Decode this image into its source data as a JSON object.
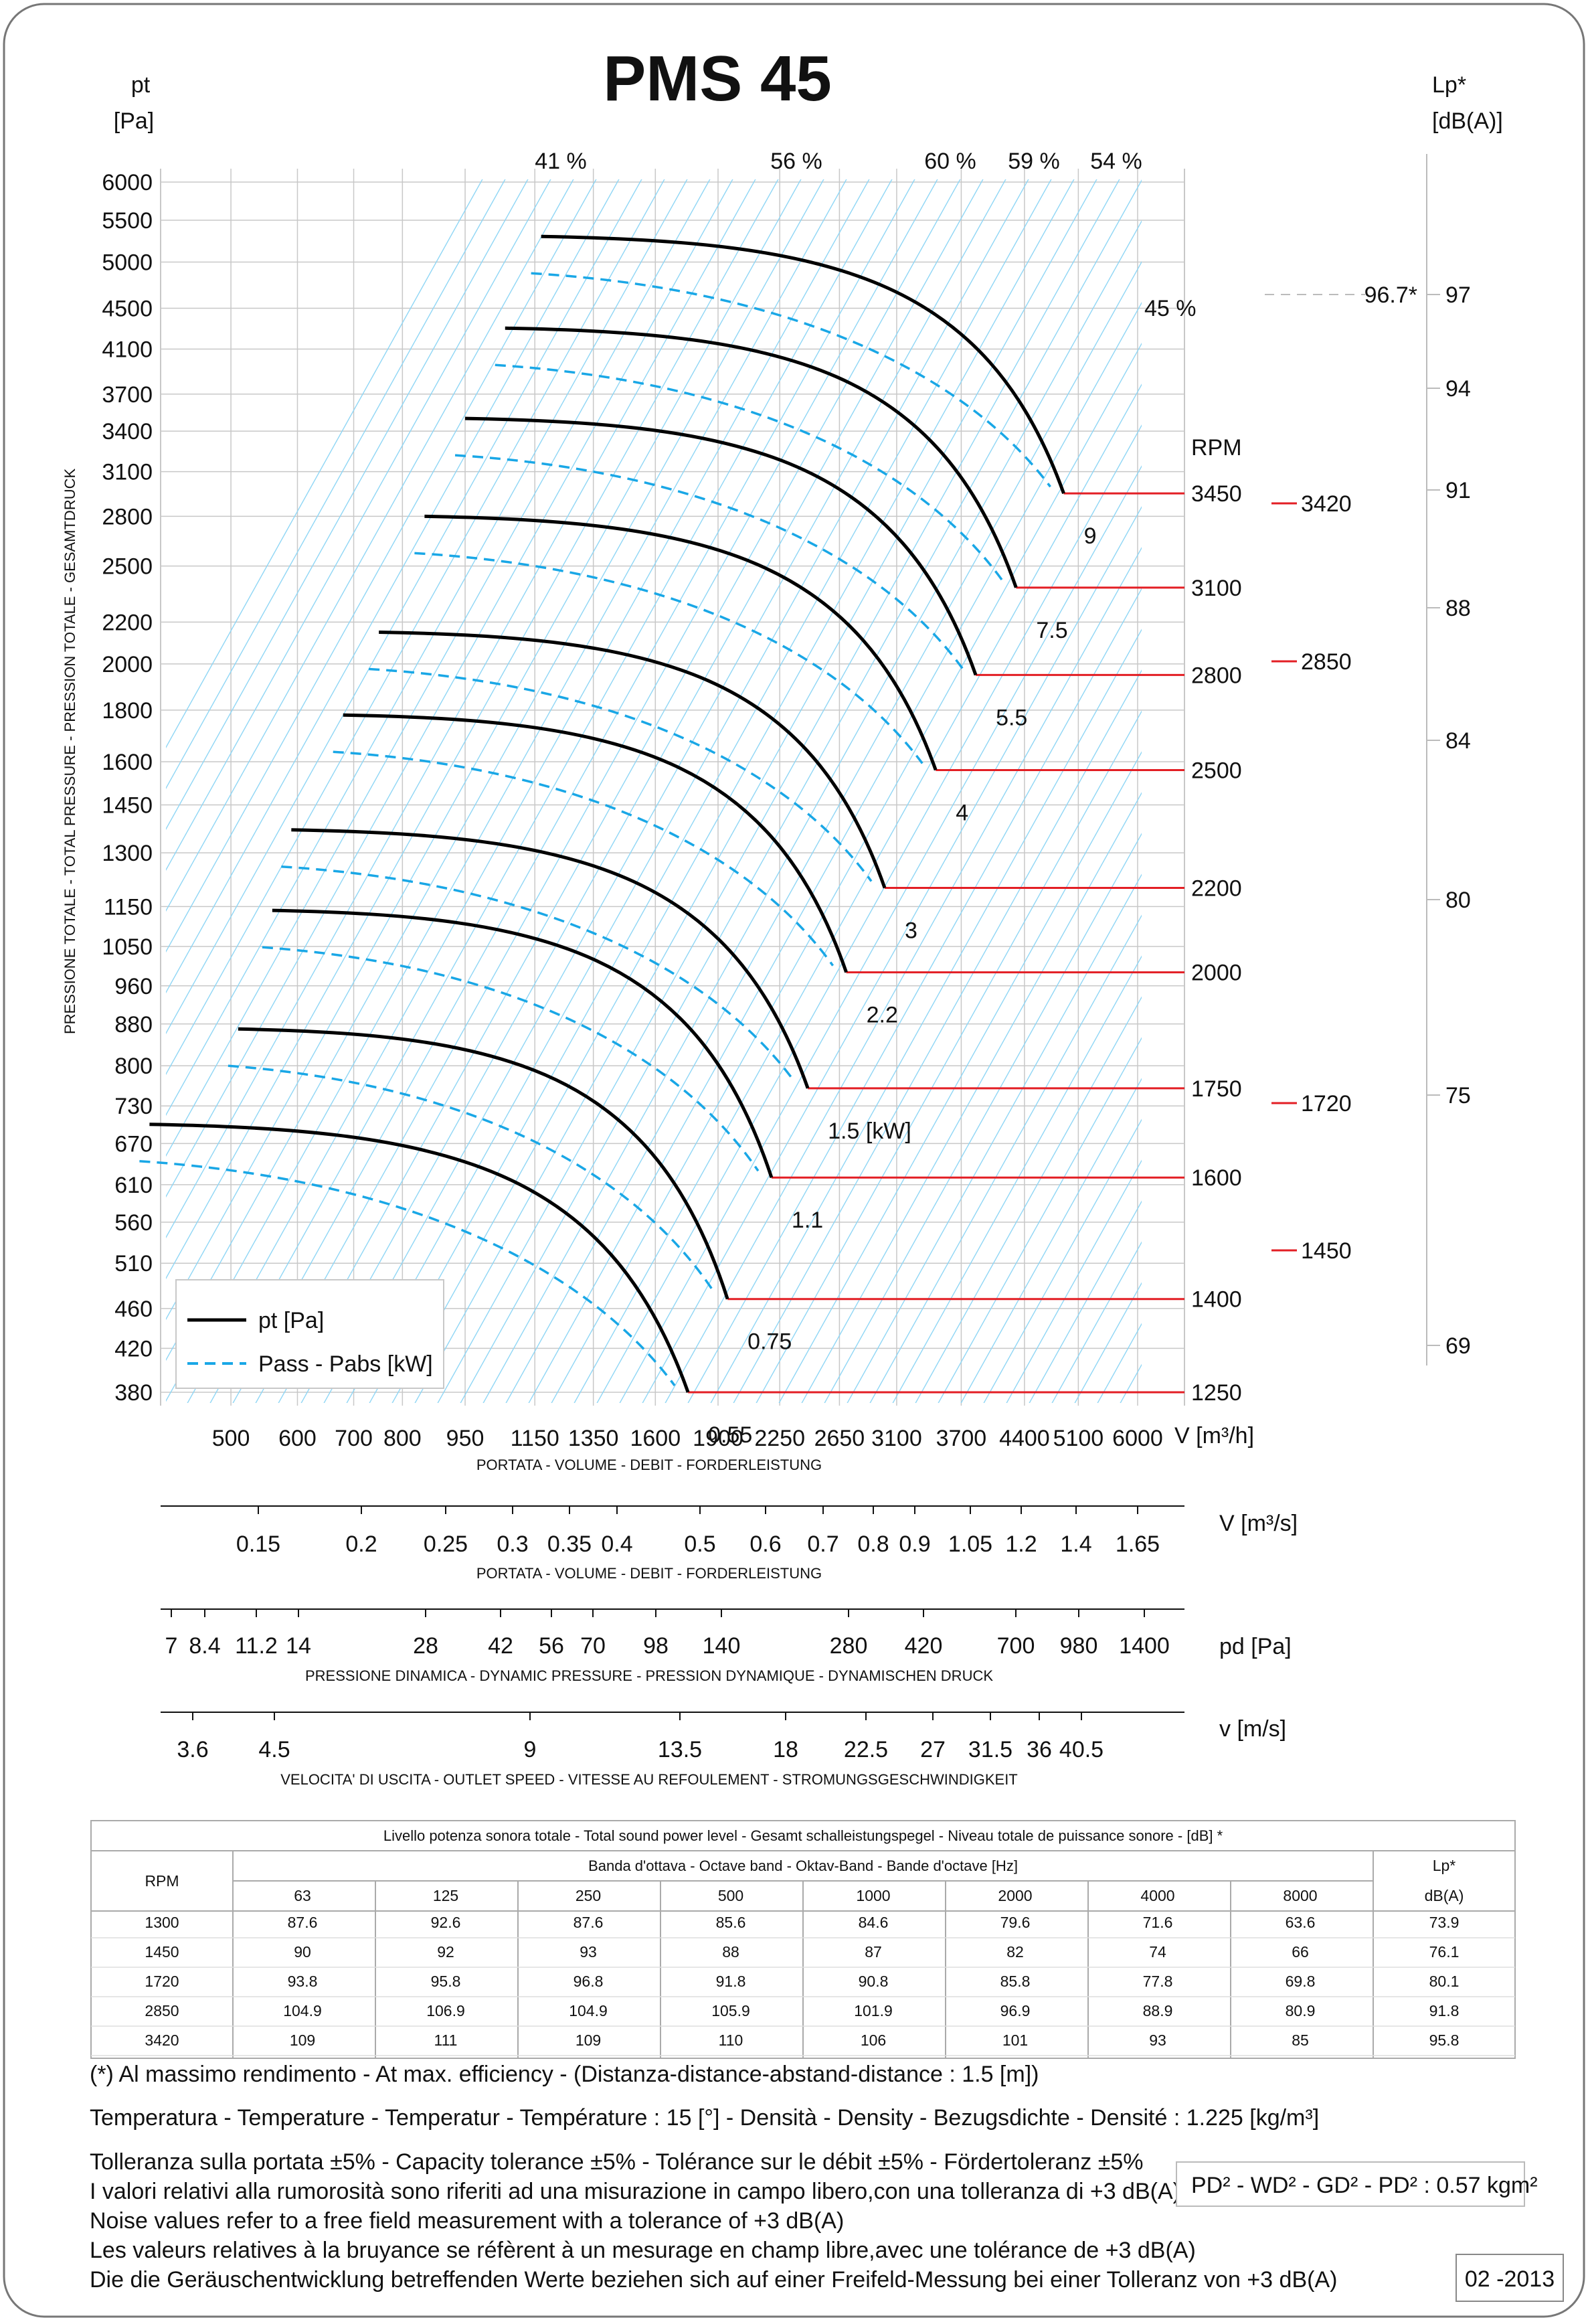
{
  "title": "PMS 45",
  "date_code": "02 -2013",
  "left_axis": {
    "label": "pt",
    "unit": "[Pa]",
    "rotated_label": "PRESSIONE TOTALE - TOTAL PRESSURE - PRESSION TOTALE - GESAMTDRUCK"
  },
  "right_axis": {
    "label": "Lp*",
    "unit": "[dB(A)]"
  },
  "legend": {
    "pt": "pt [Pa]",
    "power": "Pass - Pabs [kW]"
  },
  "axes": {
    "volume_m3h": {
      "label": "V [m³/h]",
      "caption": "PORTATA - VOLUME - DEBIT - FORDERLEISTUNG"
    },
    "volume_m3s": {
      "label": "V  [m³/s]",
      "caption": "PORTATA - VOLUME - DEBIT - FORDERLEISTUNG"
    },
    "dyn_pressure": {
      "label": "pd  [Pa]",
      "caption": "PRESSIONE DINAMICA - DYNAMIC PRESSURE - PRESSION DYNAMIQUE - DYNAMISCHEN DRUCK"
    },
    "speed": {
      "label": "v  [m/s]",
      "caption": "VELOCITA' DI USCITA - OUTLET SPEED - VITESSE AU REFOULEMENT - STROMUNGSGESCHWINDIGKEIT"
    }
  },
  "chart_data": {
    "type": "line",
    "title": "PMS 45",
    "xlabel": "V [m³/h]",
    "ylabel": "pt [Pa]",
    "xscale": "log",
    "yscale": "log",
    "xlim": [
      380,
      6400
    ],
    "ylim": [
      370,
      6000
    ],
    "x_ticks": [
      500,
      600,
      700,
      800,
      950,
      1150,
      1350,
      1600,
      1900,
      2250,
      2650,
      3100,
      3700,
      4400,
      5100,
      6000
    ],
    "y_ticks": [
      380,
      420,
      460,
      510,
      560,
      610,
      670,
      730,
      800,
      880,
      960,
      1050,
      1150,
      1300,
      1450,
      1600,
      1800,
      2000,
      2200,
      2500,
      2800,
      3100,
      3400,
      3700,
      4100,
      4500,
      5000,
      5500,
      6000
    ],
    "efficiency_labels": [
      "41 %",
      "56 %",
      "60 %",
      "59 %",
      "54 %",
      "45 %"
    ],
    "pressure_curves": [
      {
        "rpm": "1250",
        "start_v": 400,
        "start_p": 700,
        "end_v": 1750,
        "end_p": 380
      },
      {
        "rpm": "1400",
        "start_v": 510,
        "start_p": 870,
        "end_v": 1950,
        "end_p": 470
      },
      {
        "rpm": "1600",
        "start_v": 560,
        "start_p": 1140,
        "end_v": 2200,
        "end_p": 620
      },
      {
        "rpm": "1750",
        "start_v": 590,
        "start_p": 1370,
        "end_v": 2430,
        "end_p": 760
      },
      {
        "rpm": "2000",
        "start_v": 680,
        "start_p": 1780,
        "end_v": 2700,
        "end_p": 990
      },
      {
        "rpm": "2200",
        "start_v": 750,
        "start_p": 2150,
        "end_v": 3000,
        "end_p": 1200
      },
      {
        "rpm": "2500",
        "start_v": 850,
        "start_p": 2800,
        "end_v": 3450,
        "end_p": 1570
      },
      {
        "rpm": "2800",
        "start_v": 950,
        "start_p": 3500,
        "end_v": 3850,
        "end_p": 1950
      },
      {
        "rpm": "3100",
        "start_v": 1060,
        "start_p": 4300,
        "end_v": 4300,
        "end_p": 2380
      },
      {
        "rpm": "3450",
        "start_v": 1170,
        "start_p": 5300,
        "end_v": 4900,
        "end_p": 2950
      }
    ],
    "rpm_labels": [
      "RPM",
      "3450",
      "3100",
      "2800",
      "2500",
      "2200",
      "2000",
      "1750",
      "1600",
      "1400",
      "1250"
    ],
    "power_labels": [
      "9",
      "7.5",
      "5.5",
      "4",
      "3",
      "2.2",
      "1.5   [kW]",
      "1.1",
      "0.75",
      "0.55"
    ],
    "side_rpm_marks": [
      "3420",
      "2850",
      "1720",
      "1450"
    ],
    "lp_ticks": [
      "97",
      "94",
      "91",
      "88",
      "84",
      "80",
      "75",
      "69"
    ],
    "lp_marker": "96.7*"
  },
  "secondary_scales": {
    "m3s": [
      "0.15",
      "0.2",
      "0.25",
      "0.3",
      "0.35",
      "0.4",
      "0.5",
      "0.6",
      "0.7",
      "0.8",
      "0.9",
      "1.05",
      "1.2",
      "1.4",
      "1.65"
    ],
    "pd": [
      "7",
      "8.4",
      "11.2",
      "14",
      "28",
      "42",
      "56",
      "70",
      "98",
      "140",
      "280",
      "420",
      "700",
      "980",
      "1400"
    ],
    "v": [
      "3.6",
      "4.5",
      "9",
      "13.5",
      "18",
      "22.5",
      "27",
      "31.5",
      "36",
      "40.5"
    ]
  },
  "sound_table": {
    "title": "Livello potenza sonora totale - Total sound power level - Gesamt schalleistungspegel - Niveau totale de puissance sonore - [dB]   *",
    "band_title": "Banda d'ottava - Octave band - Oktav-Band - Bande d'octave [Hz]",
    "rpm_header": "RPM",
    "lp_header": "Lp*",
    "lp_unit": "dB(A)",
    "bands": [
      "63",
      "125",
      "250",
      "500",
      "1000",
      "2000",
      "4000",
      "8000"
    ],
    "rows": [
      [
        "1300",
        "87.6",
        "92.6",
        "87.6",
        "85.6",
        "84.6",
        "79.6",
        "71.6",
        "63.6",
        "73.9"
      ],
      [
        "1450",
        "90",
        "92",
        "93",
        "88",
        "87",
        "82",
        "74",
        "66",
        "76.1"
      ],
      [
        "1720",
        "93.8",
        "95.8",
        "96.8",
        "91.8",
        "90.8",
        "85.8",
        "77.8",
        "69.8",
        "80.1"
      ],
      [
        "2850",
        "104.9",
        "106.9",
        "104.9",
        "105.9",
        "101.9",
        "96.9",
        "88.9",
        "80.9",
        "91.8"
      ],
      [
        "3420",
        "109",
        "111",
        "109",
        "110",
        "106",
        "101",
        "93",
        "85",
        "95.8"
      ]
    ]
  },
  "notes": [
    "(*) Al massimo rendimento - At max. efficiency - (Distanza-distance-abstand-distance : 1.5 [m])",
    "Temperatura - Temperature - Temperatur - Température : 15 [°]  -  Densità - Density - Bezugsdichte - Densité : 1.225 [kg/m³]",
    "Tolleranza sulla portata  ±5% - Capacity tolerance ±5% - Tolérance sur le débit ±5% - Fördertoleranz ±5%",
    "I valori relativi alla rumorosità sono riferiti ad una misurazione in campo libero,con una tolleranza di +3 dB(A)",
    "Noise values refer to a free field measurement with a tolerance of +3 dB(A)",
    "Les valeurs relatives à la bruyance se réfèrent à un mesurage en champ libre,avec une tolérance de +3 dB(A)",
    "Die die Geräuschentwicklung betreffenden Werte beziehen sich auf einer Freifeld-Messung bei einer Tolleranz von +3 dB(A)"
  ],
  "inertia": "PD² -  WD² - GD² -  PD²  :  0.57 kgm²",
  "colors": {
    "curve": "#000000",
    "power": "#19a7e6",
    "rpm_line": "#e31e24",
    "grid": "#c8c8c8",
    "eff": "#8fd6f5"
  }
}
